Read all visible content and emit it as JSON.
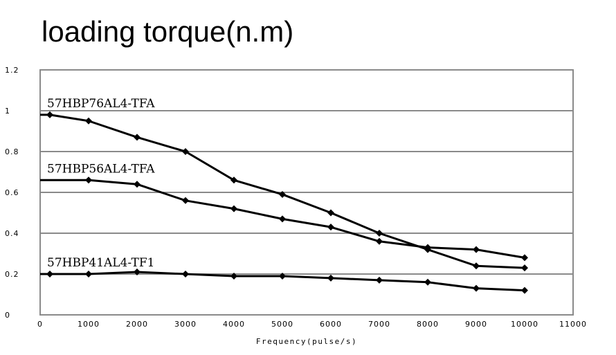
{
  "chart_data": {
    "type": "line",
    "title": "loading torque(n.m)",
    "xlabel": "Frequency(pulse/s)",
    "ylabel": "",
    "xlim": [
      0,
      11000
    ],
    "ylim": [
      0,
      1.2
    ],
    "x_ticks": [
      0,
      1000,
      2000,
      3000,
      4000,
      5000,
      6000,
      7000,
      8000,
      9000,
      10000,
      11000
    ],
    "y_ticks": [
      0,
      0.2,
      0.4,
      0.6,
      0.8,
      1,
      1.2
    ],
    "y_tick_labels": [
      "0",
      "0.2",
      "0.4",
      "0.6",
      "0.8",
      "1",
      "1.2"
    ],
    "grid": true,
    "series": [
      {
        "name": "57HBP76AL4-TFA",
        "x": [
          0,
          200,
          1000,
          2000,
          3000,
          4000,
          5000,
          6000,
          7000,
          8000,
          9000,
          10000
        ],
        "y": [
          0.98,
          0.98,
          0.95,
          0.87,
          0.8,
          0.66,
          0.59,
          0.5,
          0.4,
          0.32,
          0.24,
          0.23
        ]
      },
      {
        "name": "57HBP56AL4-TFA",
        "x": [
          0,
          1000,
          2000,
          3000,
          4000,
          5000,
          6000,
          7000,
          8000,
          9000,
          10000
        ],
        "y": [
          0.66,
          0.66,
          0.64,
          0.56,
          0.52,
          0.47,
          0.43,
          0.36,
          0.33,
          0.32,
          0.28
        ]
      },
      {
        "name": "57HBP41AL4-TF1",
        "x": [
          0,
          200,
          1000,
          2000,
          3000,
          4000,
          5000,
          6000,
          7000,
          8000,
          9000,
          10000
        ],
        "y": [
          0.2,
          0.2,
          0.2,
          0.21,
          0.2,
          0.19,
          0.19,
          0.18,
          0.17,
          0.16,
          0.13,
          0.12
        ]
      }
    ]
  }
}
